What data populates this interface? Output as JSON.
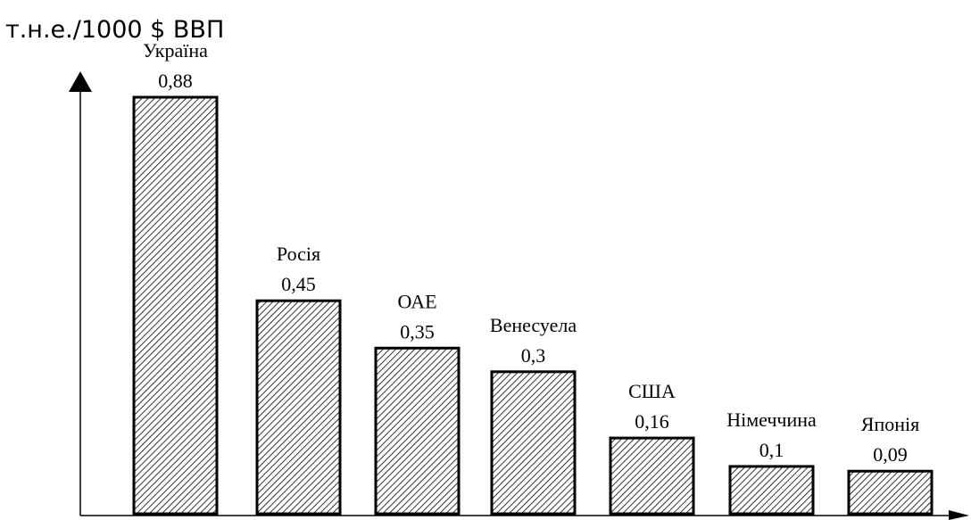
{
  "chart_data": {
    "type": "bar",
    "ylabel": "т.н.е./1000 $ ВВП",
    "categories": [
      "Україна",
      "Росія",
      "ОАЕ",
      "Венесуела",
      "США",
      "Німеччина",
      "Японія"
    ],
    "value_labels": [
      "0,88",
      "0,45",
      "0,35",
      "0,3",
      "0,16",
      "0,1",
      "0,09"
    ],
    "values": [
      0.88,
      0.45,
      0.35,
      0.3,
      0.16,
      0.1,
      0.09
    ],
    "ylim": [
      0,
      0.88
    ],
    "grid": false,
    "bar_pattern": "diagonal-hatch",
    "colors": {
      "bar_fill": "#ffffff",
      "hatch": "#000000",
      "stroke": "#000000"
    }
  }
}
